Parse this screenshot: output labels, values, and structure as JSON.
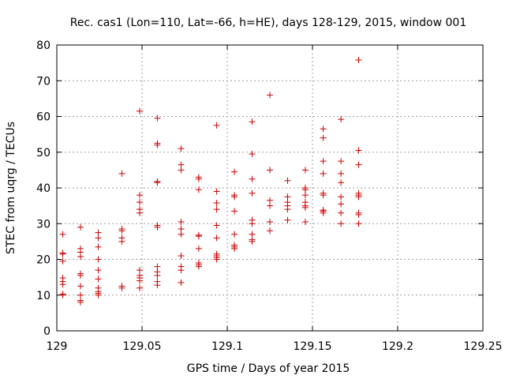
{
  "chart_data": {
    "type": "scatter",
    "title": "Rec. cas1 (Lon=110, Lat=-66, h=HE), days 128-129, 2015, window 001",
    "xlabel": "GPS time / Days of year 2015",
    "ylabel": "STEC from uqrg / TECUs",
    "xlim": [
      129,
      129.25
    ],
    "ylim": [
      0,
      80
    ],
    "xticks": [
      "129",
      "129.05",
      "129.1",
      "129.15",
      "129.2",
      "129.25"
    ],
    "yticks": [
      "0",
      "10",
      "20",
      "30",
      "40",
      "50",
      "60",
      "70",
      "80"
    ],
    "grid": true,
    "marker": "plus",
    "color": "#cc0000",
    "points": [
      [
        129.0035,
        27.0
      ],
      [
        129.0035,
        21.8
      ],
      [
        129.0035,
        21.5
      ],
      [
        129.0035,
        19.5
      ],
      [
        129.0035,
        14.8
      ],
      [
        129.0035,
        13.8
      ],
      [
        129.0035,
        13.0
      ],
      [
        129.0035,
        10.3
      ],
      [
        129.0035,
        10.0
      ],
      [
        129.0139,
        29.0
      ],
      [
        129.0139,
        23.0
      ],
      [
        129.0139,
        22.0
      ],
      [
        129.0139,
        20.8
      ],
      [
        129.0139,
        16.0
      ],
      [
        129.0139,
        15.5
      ],
      [
        129.0139,
        12.5
      ],
      [
        129.0139,
        10.0
      ],
      [
        129.0139,
        8.5
      ],
      [
        129.0139,
        8.0
      ],
      [
        129.0243,
        27.5
      ],
      [
        129.0243,
        26.0
      ],
      [
        129.0243,
        23.5
      ],
      [
        129.0243,
        20.0
      ],
      [
        129.0243,
        17.0
      ],
      [
        129.0243,
        14.5
      ],
      [
        129.0243,
        12.0
      ],
      [
        129.0243,
        11.0
      ],
      [
        129.0243,
        10.5
      ],
      [
        129.0243,
        10.0
      ],
      [
        129.0382,
        44.0
      ],
      [
        129.0382,
        28.5
      ],
      [
        129.0382,
        28.0
      ],
      [
        129.0382,
        26.0
      ],
      [
        129.0382,
        25.0
      ],
      [
        129.0382,
        12.5
      ],
      [
        129.0382,
        12.0
      ],
      [
        129.0486,
        61.5
      ],
      [
        129.0486,
        38.0
      ],
      [
        129.0486,
        36.0
      ],
      [
        129.0486,
        34.0
      ],
      [
        129.0486,
        33.0
      ],
      [
        129.0486,
        17.0
      ],
      [
        129.0486,
        15.5
      ],
      [
        129.0486,
        14.8
      ],
      [
        129.0486,
        14.0
      ],
      [
        129.0486,
        12.0
      ],
      [
        129.059,
        59.5
      ],
      [
        129.059,
        52.5
      ],
      [
        129.059,
        52.0
      ],
      [
        129.059,
        41.8
      ],
      [
        129.059,
        41.5
      ],
      [
        129.059,
        29.5
      ],
      [
        129.059,
        29.0
      ],
      [
        129.059,
        18.0
      ],
      [
        129.059,
        16.5
      ],
      [
        129.059,
        15.5
      ],
      [
        129.059,
        13.8
      ],
      [
        129.059,
        12.8
      ],
      [
        129.0729,
        51.0
      ],
      [
        129.0729,
        46.5
      ],
      [
        129.0729,
        45.0
      ],
      [
        129.0729,
        30.5
      ],
      [
        129.0729,
        28.5
      ],
      [
        129.0729,
        27.0
      ],
      [
        129.0729,
        21.0
      ],
      [
        129.0729,
        18.0
      ],
      [
        129.0729,
        17.0
      ],
      [
        129.0729,
        13.5
      ],
      [
        129.0833,
        43.0
      ],
      [
        129.0833,
        42.5
      ],
      [
        129.0833,
        39.5
      ],
      [
        129.0833,
        26.8
      ],
      [
        129.0833,
        26.5
      ],
      [
        129.0833,
        23.0
      ],
      [
        129.0833,
        19.0
      ],
      [
        129.0833,
        18.5
      ],
      [
        129.0833,
        18.0
      ],
      [
        129.0938,
        57.5
      ],
      [
        129.0938,
        39.0
      ],
      [
        129.0938,
        35.8
      ],
      [
        129.0938,
        34.0
      ],
      [
        129.0938,
        29.5
      ],
      [
        129.0938,
        26.0
      ],
      [
        129.0938,
        21.5
      ],
      [
        129.0938,
        21.0
      ],
      [
        129.0938,
        20.5
      ],
      [
        129.0938,
        20.0
      ],
      [
        129.1042,
        44.5
      ],
      [
        129.1042,
        38.0
      ],
      [
        129.1042,
        37.5
      ],
      [
        129.1042,
        33.5
      ],
      [
        129.1042,
        27.0
      ],
      [
        129.1042,
        24.0
      ],
      [
        129.1042,
        23.5
      ],
      [
        129.1042,
        23.0
      ],
      [
        129.1146,
        58.5
      ],
      [
        129.1146,
        49.5
      ],
      [
        129.1146,
        42.5
      ],
      [
        129.1146,
        38.5
      ],
      [
        129.1146,
        31.0
      ],
      [
        129.1146,
        30.0
      ],
      [
        129.1146,
        27.0
      ],
      [
        129.1146,
        25.5
      ],
      [
        129.1146,
        25.0
      ],
      [
        129.125,
        66.0
      ],
      [
        129.125,
        45.0
      ],
      [
        129.125,
        36.5
      ],
      [
        129.125,
        35.0
      ],
      [
        129.125,
        30.5
      ],
      [
        129.125,
        28.0
      ],
      [
        129.1354,
        42.0
      ],
      [
        129.1354,
        37.5
      ],
      [
        129.1354,
        36.0
      ],
      [
        129.1354,
        35.0
      ],
      [
        129.1354,
        34.0
      ],
      [
        129.1354,
        31.0
      ],
      [
        129.1458,
        45.0
      ],
      [
        129.1458,
        40.0
      ],
      [
        129.1458,
        39.5
      ],
      [
        129.1458,
        38.0
      ],
      [
        129.1458,
        36.0
      ],
      [
        129.1458,
        35.0
      ],
      [
        129.1458,
        34.5
      ],
      [
        129.1458,
        30.5
      ],
      [
        129.1563,
        56.5
      ],
      [
        129.1563,
        54.0
      ],
      [
        129.1563,
        47.5
      ],
      [
        129.1563,
        44.0
      ],
      [
        129.1563,
        38.5
      ],
      [
        129.1563,
        38.0
      ],
      [
        129.1563,
        33.8
      ],
      [
        129.1563,
        33.5
      ],
      [
        129.1563,
        33.0
      ],
      [
        129.1667,
        59.2
      ],
      [
        129.1667,
        47.5
      ],
      [
        129.1667,
        44.0
      ],
      [
        129.1667,
        41.5
      ],
      [
        129.1667,
        37.5
      ],
      [
        129.1667,
        35.5
      ],
      [
        129.1667,
        33.0
      ],
      [
        129.1667,
        30.0
      ],
      [
        129.1771,
        75.8
      ],
      [
        129.1771,
        50.5
      ],
      [
        129.1771,
        46.5
      ],
      [
        129.1771,
        38.5
      ],
      [
        129.1771,
        38.0
      ],
      [
        129.1771,
        37.5
      ],
      [
        129.1771,
        33.0
      ],
      [
        129.1771,
        32.5
      ],
      [
        129.1771,
        30.0
      ]
    ]
  }
}
